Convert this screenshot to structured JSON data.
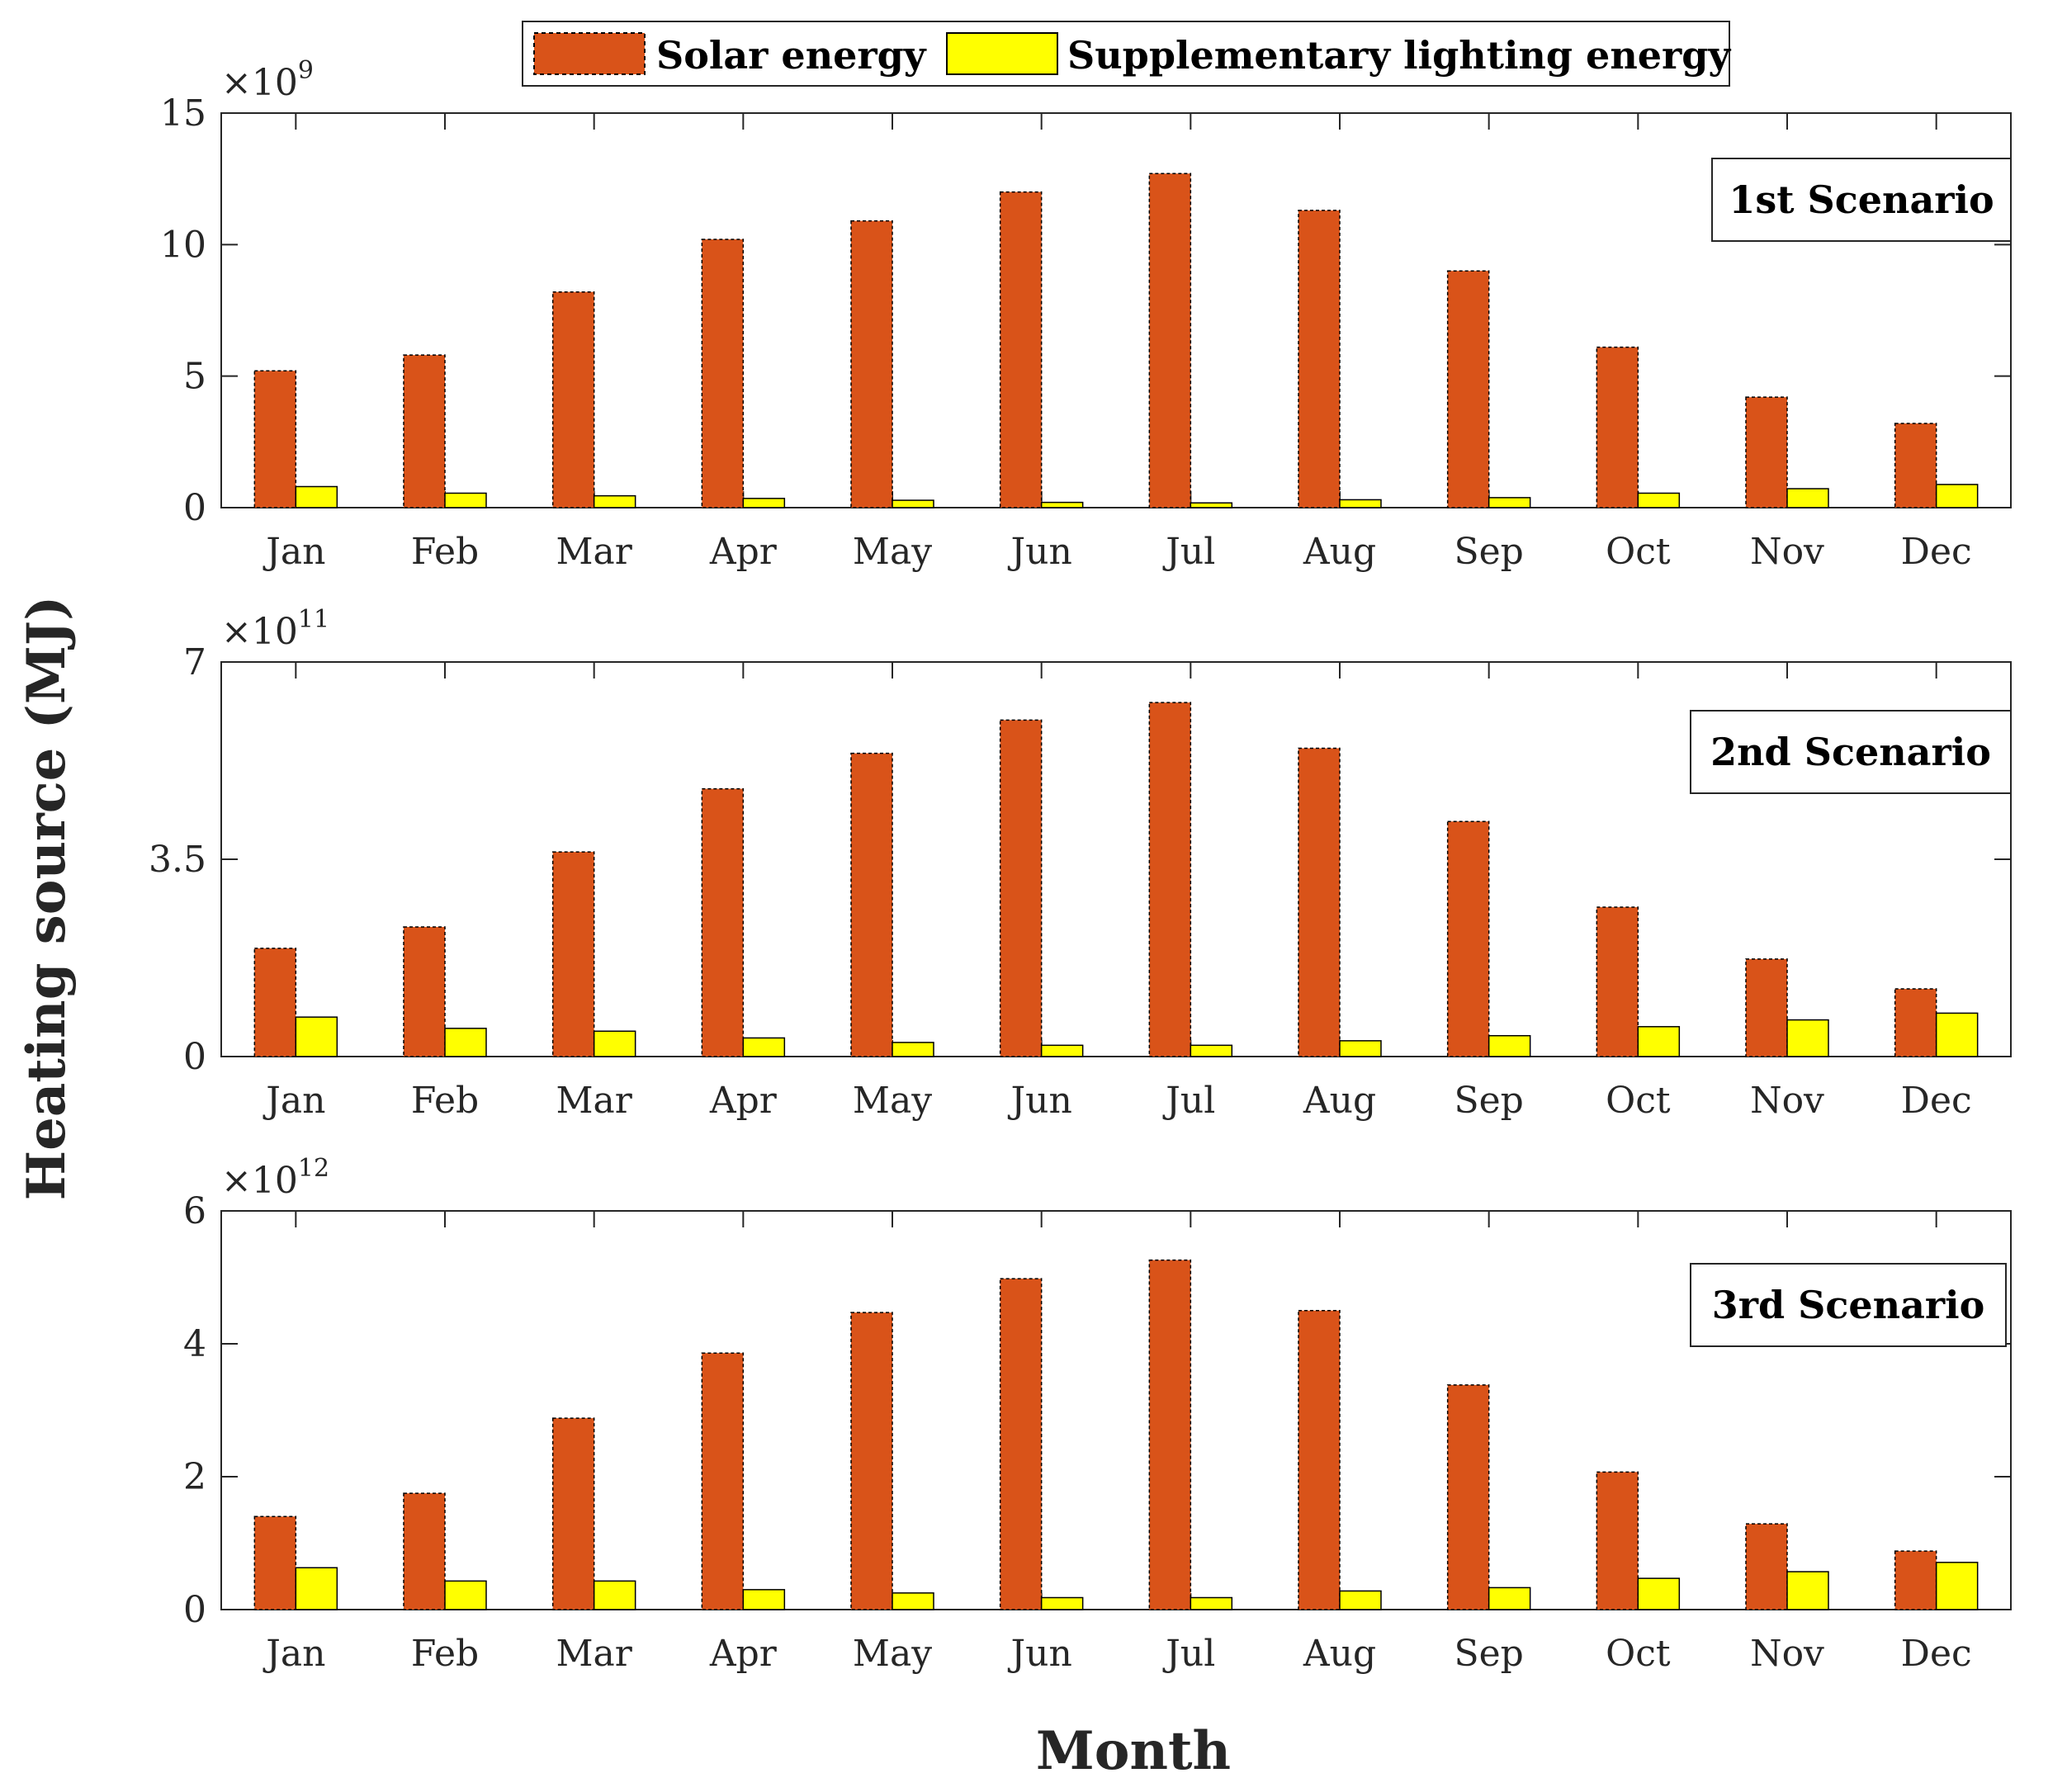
{
  "chart_data": {
    "type": "bar",
    "ylabel": "Heating source (MJ)",
    "xlabel": "Month",
    "legend": {
      "placement": "top-center",
      "entries": [
        "Solar energy",
        "Supplementary lighting energy"
      ]
    },
    "colors": {
      "solar": "#D95319",
      "supplementary": "#FFFF00"
    },
    "categories": [
      "Jan",
      "Feb",
      "Mar",
      "Apr",
      "May",
      "Jun",
      "Jul",
      "Aug",
      "Sep",
      "Oct",
      "Nov",
      "Dec"
    ],
    "panels": [
      {
        "annotation": "1st Scenario",
        "exponent_base": "×10",
        "exponent": "9",
        "ylim": [
          0,
          15
        ],
        "yticks": [
          0,
          5,
          10,
          15
        ],
        "ytick_labels": [
          "0",
          "5",
          "10",
          "15"
        ],
        "series": [
          {
            "name": "Solar energy",
            "values": [
              5.2,
              5.8,
              8.2,
              10.2,
              10.9,
              12.0,
              12.7,
              11.3,
              9.0,
              6.1,
              4.2,
              3.2
            ]
          },
          {
            "name": "Supplementary lighting energy",
            "values": [
              0.8,
              0.55,
              0.45,
              0.35,
              0.28,
              0.2,
              0.18,
              0.3,
              0.38,
              0.55,
              0.72,
              0.88
            ]
          }
        ]
      },
      {
        "annotation": "2nd Scenario",
        "exponent_base": "×10",
        "exponent": "11",
        "ylim": [
          0,
          7
        ],
        "yticks": [
          0,
          3.5,
          7
        ],
        "ytick_labels": [
          "0",
          "3.5",
          "7"
        ],
        "series": [
          {
            "name": "Solar energy",
            "values": [
              1.92,
              2.3,
              3.63,
              4.75,
              5.38,
              5.97,
              6.28,
              5.47,
              4.17,
              2.65,
              1.73,
              1.2
            ]
          },
          {
            "name": "Supplementary lighting energy",
            "values": [
              0.7,
              0.5,
              0.45,
              0.33,
              0.25,
              0.2,
              0.2,
              0.28,
              0.37,
              0.53,
              0.65,
              0.77
            ]
          }
        ]
      },
      {
        "annotation": "3rd Scenario",
        "exponent_base": "×10",
        "exponent": "12",
        "ylim": [
          0,
          6
        ],
        "yticks": [
          0,
          2,
          4,
          6
        ],
        "ytick_labels": [
          "0",
          "2",
          "4",
          "6"
        ],
        "series": [
          {
            "name": "Solar energy",
            "values": [
              1.4,
              1.75,
              2.88,
              3.86,
              4.47,
              4.98,
              5.26,
              4.5,
              3.38,
              2.07,
              1.29,
              0.88
            ]
          },
          {
            "name": "Supplementary lighting energy",
            "values": [
              0.63,
              0.43,
              0.43,
              0.3,
              0.25,
              0.18,
              0.18,
              0.28,
              0.33,
              0.47,
              0.57,
              0.71
            ]
          }
        ]
      }
    ]
  }
}
